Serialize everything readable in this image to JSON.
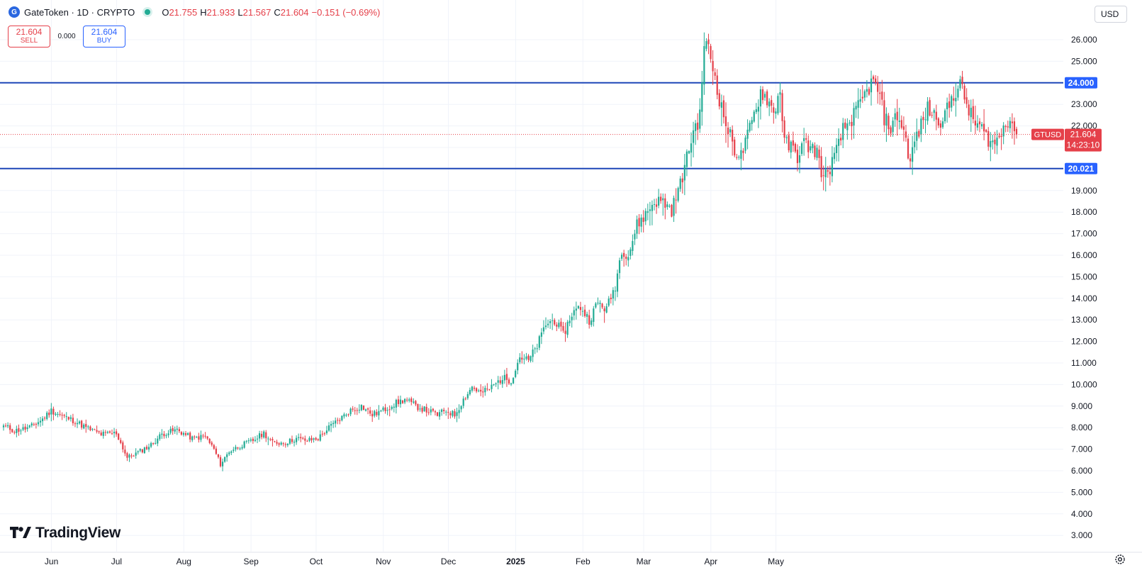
{
  "header": {
    "symbol_title": "GateToken · 1D · CRYPTO",
    "open_label": "O",
    "open_value": "21.755",
    "high_label": "H",
    "high_value": "21.933",
    "low_label": "L",
    "low_value": "21.567",
    "close_label": "C",
    "close_value": "21.604",
    "change_text": "−0.151 (−0.69%)"
  },
  "trade": {
    "sell_price": "21.604",
    "sell_label": "SELL",
    "spread": "0.000",
    "buy_price": "21.604",
    "buy_label": "BUY"
  },
  "currency_select": "USD",
  "branding": {
    "logo_text": "TradingView"
  },
  "colors": {
    "up": "#22ab94",
    "down": "#e5404a",
    "level_line": "#1e47b8",
    "level_label_bg": "#2962ff",
    "price_tag_bg": "#e5404a",
    "grid": "#f0f3fa"
  },
  "icons": [
    "gatetoken-logo-icon",
    "live-status-icon",
    "tradingview-logo-icon",
    "settings-gear-icon"
  ],
  "chart_data": {
    "type": "candlestick",
    "symbol": "GTUSD",
    "timeframe": "1D",
    "y_range": [
      3,
      26.6
    ],
    "y_ticks": [
      "3.000",
      "4.000",
      "5.000",
      "6.000",
      "7.000",
      "8.000",
      "9.000",
      "10.000",
      "11.000",
      "12.000",
      "13.000",
      "14.000",
      "15.000",
      "16.000",
      "17.000",
      "18.000",
      "19.000",
      "20.000",
      "21.000",
      "22.000",
      "23.000",
      "24.000",
      "25.000",
      "26.000"
    ],
    "x_ticks": [
      {
        "label": "Jun",
        "bold": false
      },
      {
        "label": "Jul",
        "bold": false
      },
      {
        "label": "Aug",
        "bold": false
      },
      {
        "label": "Sep",
        "bold": false
      },
      {
        "label": "Oct",
        "bold": false
      },
      {
        "label": "Nov",
        "bold": false
      },
      {
        "label": "Dec",
        "bold": false
      },
      {
        "label": "2025",
        "bold": true
      },
      {
        "label": "Feb",
        "bold": false
      },
      {
        "label": "Mar",
        "bold": false
      },
      {
        "label": "Apr",
        "bold": false
      },
      {
        "label": "May",
        "bold": false
      }
    ],
    "horizontal_levels": [
      {
        "value": 24.0,
        "label": "24.000"
      },
      {
        "value": 20.021,
        "label": "20.021"
      }
    ],
    "last_price": {
      "value": 21.604,
      "symbol_label": "GTUSD",
      "price_label": "21.604",
      "countdown": "14:23:10"
    },
    "anchor_closes": [
      [
        0,
        8.1
      ],
      [
        5,
        7.85
      ],
      [
        12,
        8.0
      ],
      [
        18,
        8.4
      ],
      [
        22,
        8.8
      ],
      [
        28,
        8.5
      ],
      [
        33,
        8.3
      ],
      [
        38,
        8.0
      ],
      [
        45,
        7.7
      ],
      [
        52,
        7.75
      ],
      [
        57,
        6.6
      ],
      [
        62,
        6.85
      ],
      [
        68,
        7.2
      ],
      [
        73,
        7.7
      ],
      [
        80,
        7.9
      ],
      [
        87,
        7.5
      ],
      [
        93,
        7.6
      ],
      [
        97,
        7.0
      ],
      [
        100,
        6.3
      ],
      [
        104,
        6.9
      ],
      [
        110,
        7.2
      ],
      [
        115,
        7.4
      ],
      [
        120,
        7.75
      ],
      [
        124,
        7.3
      ],
      [
        130,
        7.3
      ],
      [
        135,
        7.5
      ],
      [
        140,
        7.4
      ],
      [
        145,
        7.5
      ],
      [
        150,
        8.0
      ],
      [
        155,
        8.4
      ],
      [
        160,
        8.8
      ],
      [
        165,
        9.0
      ],
      [
        170,
        8.6
      ],
      [
        175,
        8.8
      ],
      [
        180,
        9.1
      ],
      [
        185,
        9.3
      ],
      [
        190,
        9.0
      ],
      [
        195,
        8.8
      ],
      [
        200,
        8.6
      ],
      [
        204,
        8.8
      ],
      [
        208,
        8.6
      ],
      [
        212,
        9.3
      ],
      [
        216,
        9.9
      ],
      [
        220,
        9.6
      ],
      [
        224,
        9.8
      ],
      [
        230,
        10.3
      ],
      [
        234,
        10.2
      ],
      [
        238,
        11.3
      ],
      [
        242,
        11.1
      ],
      [
        246,
        11.8
      ],
      [
        250,
        12.8
      ],
      [
        254,
        13.0
      ],
      [
        258,
        12.3
      ],
      [
        262,
        13.3
      ],
      [
        266,
        13.6
      ],
      [
        270,
        13.0
      ],
      [
        274,
        13.8
      ],
      [
        278,
        13.5
      ],
      [
        282,
        14.6
      ],
      [
        285,
        16.3
      ],
      [
        288,
        16.0
      ],
      [
        292,
        17.4
      ],
      [
        296,
        17.9
      ],
      [
        300,
        18.5
      ],
      [
        304,
        18.5
      ],
      [
        308,
        18.1
      ],
      [
        312,
        19.3
      ],
      [
        315,
        20.5
      ],
      [
        318,
        21.8
      ],
      [
        321,
        22.4
      ],
      [
        323,
        25.9
      ],
      [
        325,
        25.5
      ],
      [
        328,
        24.3
      ],
      [
        331,
        22.8
      ],
      [
        334,
        21.8
      ],
      [
        337,
        20.9
      ],
      [
        340,
        20.6
      ],
      [
        343,
        21.5
      ],
      [
        346,
        22.5
      ],
      [
        349,
        23.6
      ],
      [
        352,
        23.3
      ],
      [
        355,
        22.6
      ],
      [
        358,
        23.7
      ],
      [
        360,
        21.2
      ],
      [
        363,
        21.0
      ],
      [
        366,
        20.6
      ],
      [
        369,
        21.2
      ],
      [
        372,
        21.0
      ],
      [
        375,
        20.8
      ],
      [
        378,
        19.5
      ],
      [
        381,
        20.1
      ],
      [
        384,
        20.8
      ],
      [
        387,
        21.8
      ],
      [
        390,
        22.2
      ],
      [
        394,
        22.8
      ],
      [
        397,
        23.4
      ],
      [
        400,
        24.0
      ],
      [
        403,
        23.7
      ],
      [
        406,
        22.4
      ],
      [
        409,
        21.9
      ],
      [
        412,
        22.5
      ],
      [
        415,
        21.8
      ],
      [
        418,
        20.3
      ],
      [
        420,
        21.3
      ],
      [
        423,
        22.0
      ],
      [
        426,
        22.8
      ],
      [
        429,
        22.5
      ],
      [
        432,
        22.3
      ],
      [
        435,
        22.7
      ],
      [
        438,
        23.5
      ],
      [
        441,
        23.9
      ],
      [
        444,
        23.0
      ],
      [
        447,
        22.2
      ],
      [
        450,
        22.0
      ],
      [
        453,
        21.5
      ],
      [
        456,
        21.2
      ],
      [
        459,
        21.4
      ],
      [
        462,
        22.3
      ],
      [
        465,
        22.2
      ],
      [
        467,
        21.6
      ]
    ]
  }
}
